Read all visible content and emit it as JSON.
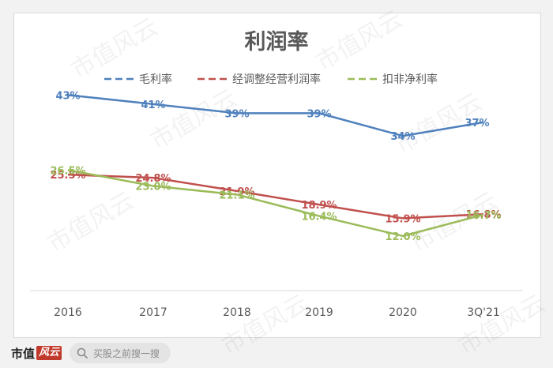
{
  "chart_data": {
    "type": "line",
    "title": "利润率",
    "categories": [
      "2016",
      "2017",
      "2018",
      "2019",
      "2020",
      "3Q'21"
    ],
    "ylim": [
      0,
      50
    ],
    "grid": false,
    "legend_position": "top",
    "series": [
      {
        "name": "毛利率",
        "color": "#4f81bd",
        "dashed_legend": true,
        "values": [
          43,
          41,
          39,
          39,
          34,
          37
        ],
        "labels": [
          "43%",
          "41%",
          "39%",
          "39%",
          "34%",
          "37%"
        ]
      },
      {
        "name": "经调整经营利润率",
        "color": "#c0504d",
        "dashed_legend": true,
        "values": [
          25.5,
          24.8,
          21.9,
          18.9,
          15.9,
          16.8
        ],
        "labels": [
          "25.5%",
          "24.8%",
          "21.9%",
          "18.9%",
          "15.9%",
          "16.8%"
        ]
      },
      {
        "name": "扣非净利率",
        "color": "#9bbb59",
        "dashed_legend": true,
        "values": [
          26.5,
          23.0,
          21.1,
          16.4,
          12.0,
          16.7
        ],
        "labels": [
          "26.5%",
          "23.0%",
          "21.1%",
          "16.4%",
          "12.0%",
          "16.7%"
        ]
      }
    ]
  },
  "watermark": "市值风云",
  "footer": {
    "brand_text": "市值",
    "brand_box": "风云",
    "search_placeholder": "买股之前搜一搜"
  }
}
